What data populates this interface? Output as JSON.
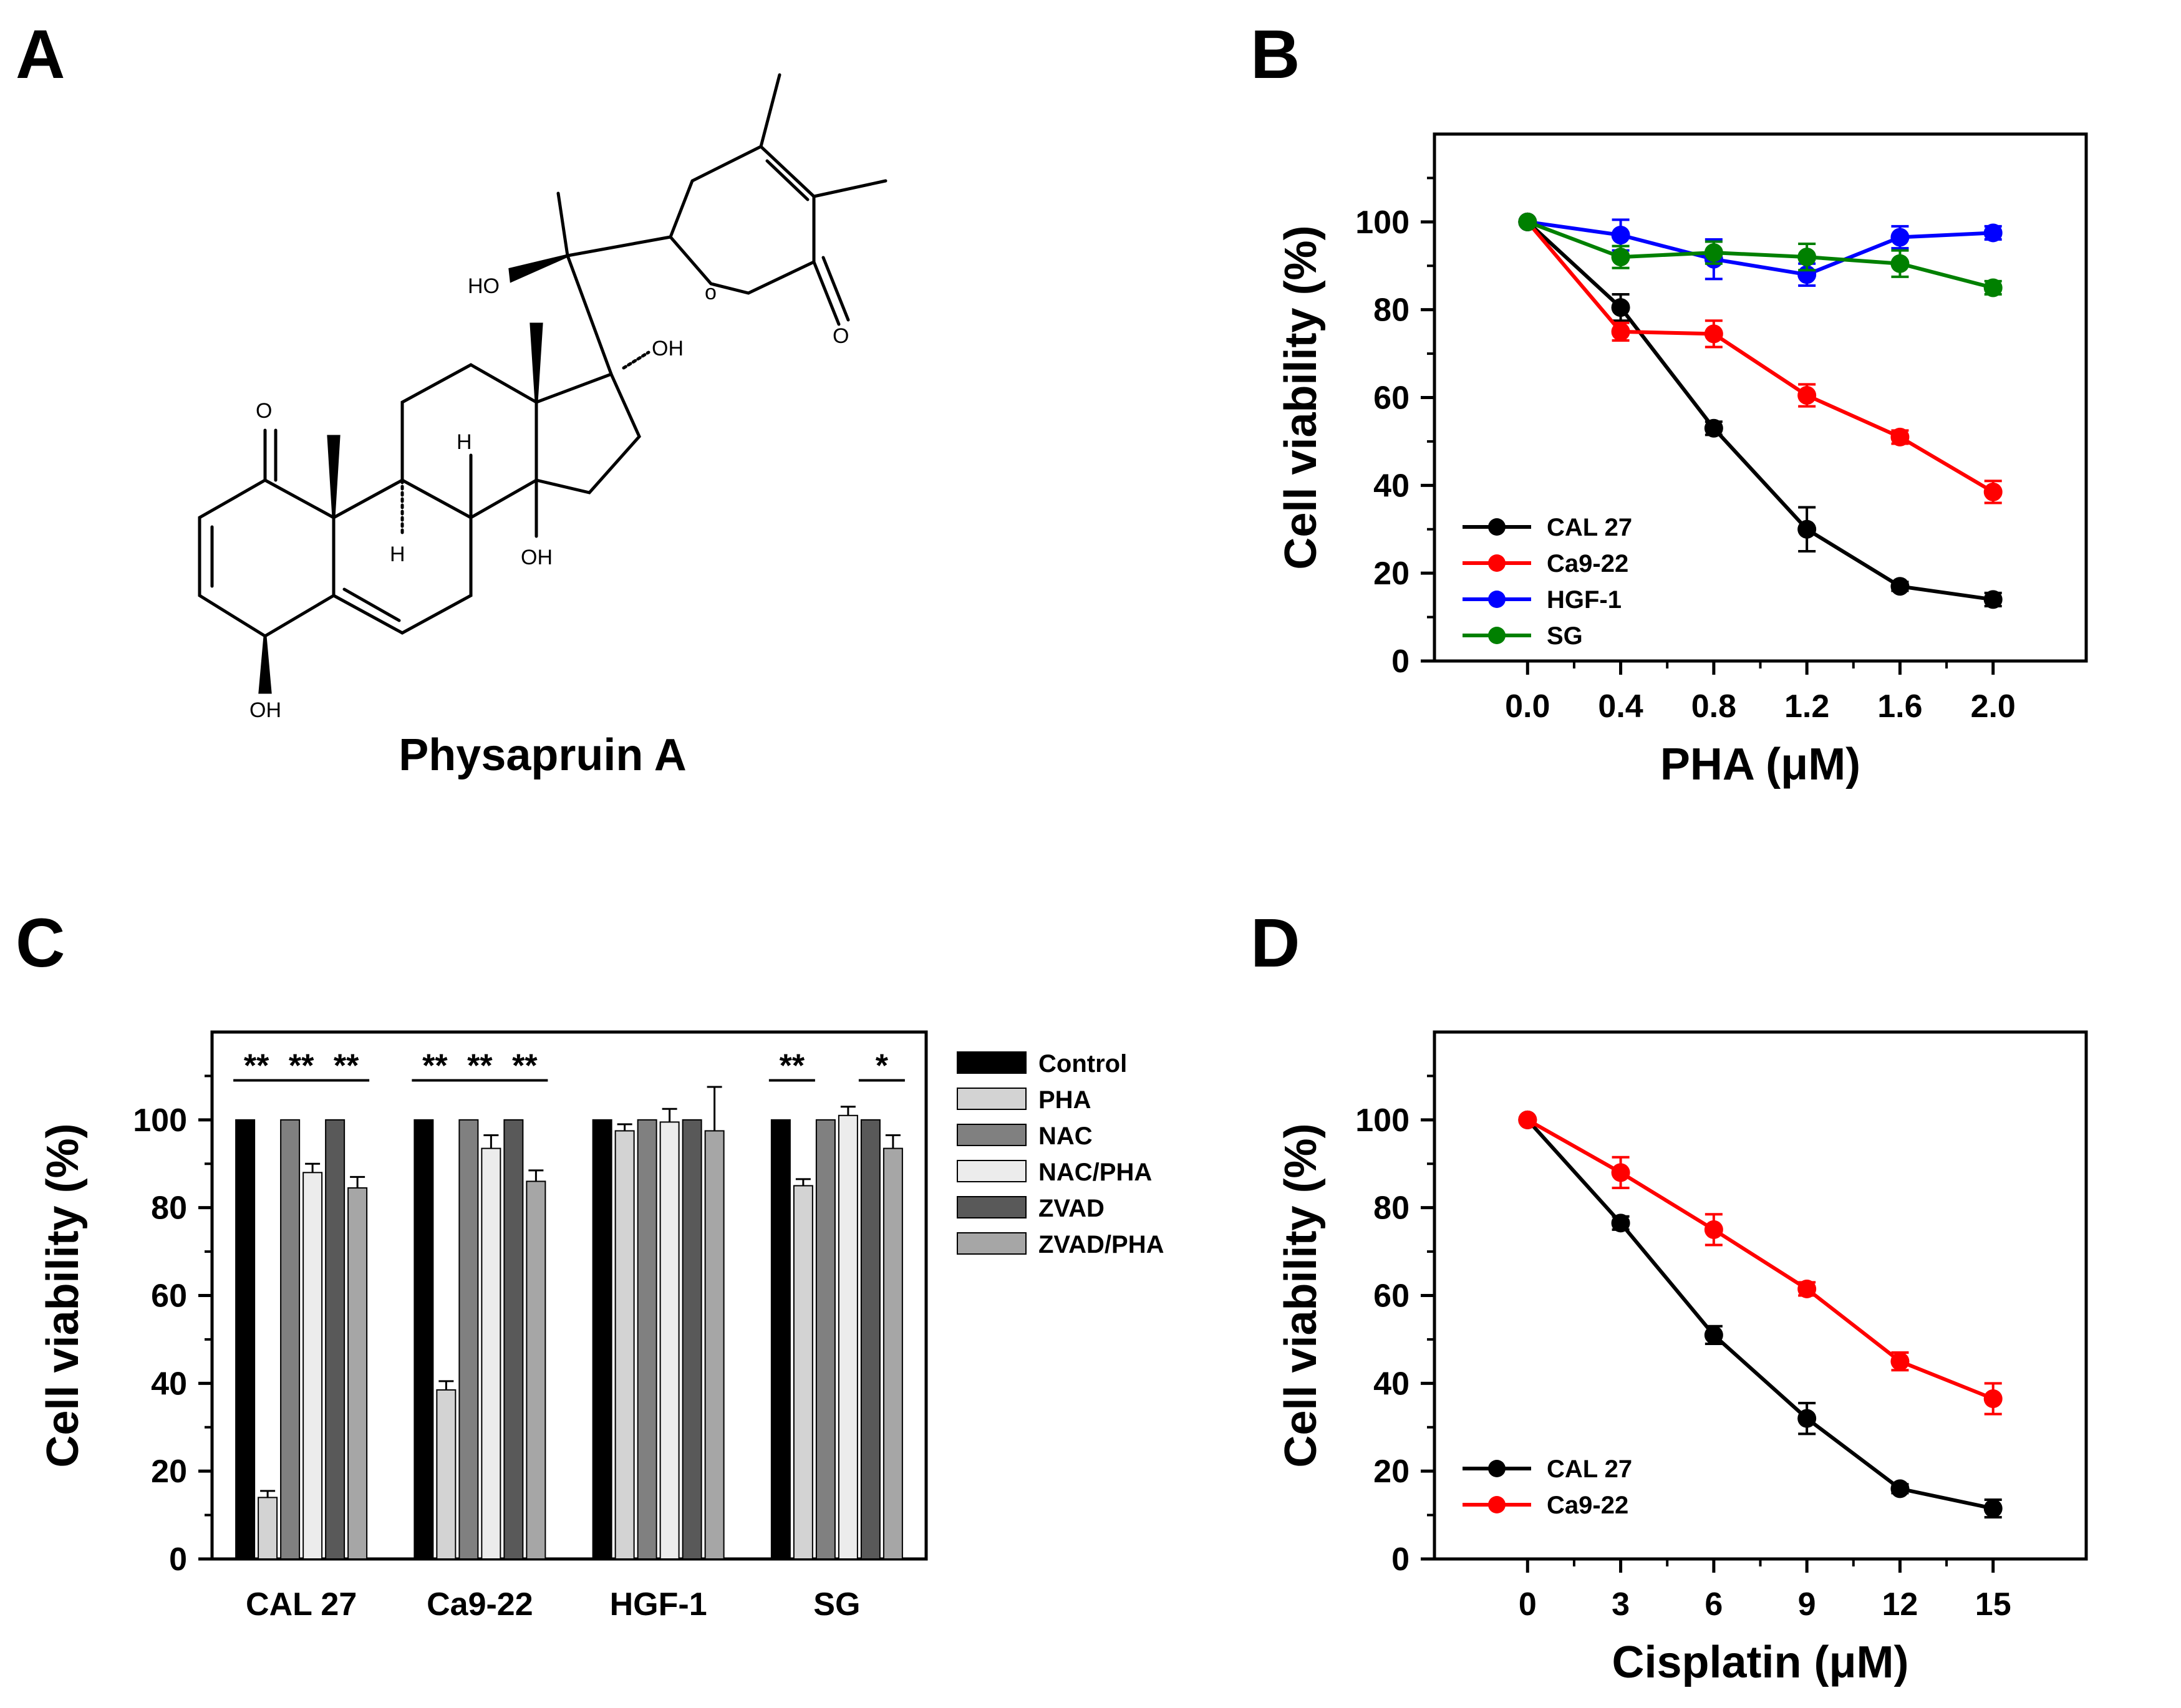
{
  "panels": {
    "A": {
      "label": "A",
      "compound_name": "Physapruin A",
      "atom_labels": {
        "oh1": "HO",
        "oh2": "OH",
        "oh3": "OH",
        "oh4": "OH",
        "o_ketone": "O",
        "o_ring": "o",
        "o_lactone": "O",
        "h1": "H",
        "h2": "H"
      }
    },
    "B": {
      "label": "B"
    },
    "C": {
      "label": "C"
    },
    "D": {
      "label": "D"
    }
  },
  "chart_data": [
    {
      "panel": "B",
      "type": "line",
      "title": "",
      "xlabel": "PHA (μM)",
      "ylabel": "Cell viability (%)",
      "xlim": [
        -0.4,
        2.4
      ],
      "ylim": [
        0,
        120
      ],
      "x_ticks": [
        "0.0",
        "0.4",
        "0.8",
        "1.2",
        "1.6",
        "2.0"
      ],
      "y_ticks": [
        "0",
        "20",
        "40",
        "60",
        "80",
        "100"
      ],
      "legend_position": "bottom-left",
      "x": [
        0.0,
        0.4,
        0.8,
        1.2,
        1.6,
        2.0
      ],
      "series": [
        {
          "name": "CAL 27",
          "color": "#000000",
          "values": [
            100,
            80.5,
            53,
            30,
            17,
            14
          ],
          "errors": [
            0,
            3,
            1.5,
            5,
            1,
            1.5
          ]
        },
        {
          "name": "Ca9-22",
          "color": "#ff0000",
          "values": [
            100,
            75,
            74.5,
            60.5,
            51,
            38.5
          ],
          "errors": [
            0,
            2,
            3,
            2.5,
            1.5,
            2.5
          ]
        },
        {
          "name": "HGF-1",
          "color": "#0000ff",
          "values": [
            100,
            97,
            91.5,
            88,
            96.5,
            97.5
          ],
          "errors": [
            0,
            3.5,
            4.5,
            2.5,
            2.5,
            1.5
          ]
        },
        {
          "name": "SG",
          "color": "#008000",
          "values": [
            100,
            92,
            93,
            92,
            90.5,
            85
          ],
          "errors": [
            0,
            2.5,
            2.5,
            3,
            3,
            1.5
          ]
        }
      ]
    },
    {
      "panel": "C",
      "type": "bar",
      "title": "",
      "xlabel": "",
      "ylabel": "Cell viability (%)",
      "ylim": [
        0,
        120
      ],
      "y_ticks": [
        "0",
        "20",
        "40",
        "60",
        "80",
        "100"
      ],
      "legend_position": "right",
      "categories": [
        "CAL 27",
        "Ca9-22",
        "HGF-1",
        "SG"
      ],
      "series": [
        {
          "name": "Control",
          "color": "#000000",
          "values": [
            100,
            100,
            100,
            100
          ],
          "errors": [
            0,
            0,
            0,
            0
          ]
        },
        {
          "name": "PHA",
          "color": "#d3d3d3",
          "values": [
            14,
            38.5,
            97.5,
            85
          ],
          "errors": [
            1.5,
            2,
            1.5,
            1.5
          ]
        },
        {
          "name": "NAC",
          "color": "#808080",
          "values": [
            100,
            100,
            100,
            100
          ],
          "errors": [
            0,
            0,
            0,
            0
          ]
        },
        {
          "name": "NAC/PHA",
          "color": "#ececec",
          "values": [
            88,
            93.5,
            99.5,
            101
          ],
          "errors": [
            2,
            3,
            3,
            2
          ]
        },
        {
          "name": "ZVAD",
          "color": "#595959",
          "values": [
            100,
            100,
            100,
            100
          ],
          "errors": [
            0,
            0,
            0,
            0
          ]
        },
        {
          "name": "ZVAD/PHA",
          "color": "#a6a6a6",
          "values": [
            84.5,
            86,
            97.5,
            93.5
          ],
          "errors": [
            2.5,
            2.5,
            10,
            3
          ]
        }
      ],
      "significance": [
        {
          "category": "CAL 27",
          "from": "Control",
          "to": "PHA",
          "label": "**"
        },
        {
          "category": "CAL 27",
          "from": "NAC",
          "to": "NAC/PHA",
          "label": "**"
        },
        {
          "category": "CAL 27",
          "from": "ZVAD",
          "to": "ZVAD/PHA",
          "label": "**"
        },
        {
          "category": "Ca9-22",
          "from": "Control",
          "to": "PHA",
          "label": "**"
        },
        {
          "category": "Ca9-22",
          "from": "NAC",
          "to": "NAC/PHA",
          "label": "**"
        },
        {
          "category": "Ca9-22",
          "from": "ZVAD",
          "to": "ZVAD/PHA",
          "label": "**"
        },
        {
          "category": "SG",
          "from": "Control",
          "to": "PHA",
          "label": "**"
        },
        {
          "category": "SG",
          "from": "ZVAD",
          "to": "ZVAD/PHA",
          "label": "*"
        }
      ]
    },
    {
      "panel": "D",
      "type": "line",
      "title": "",
      "xlabel": "Cisplatin (μM)",
      "ylabel": "Cell viability (%)",
      "xlim": [
        -3,
        18
      ],
      "ylim": [
        0,
        120
      ],
      "x_ticks": [
        "0",
        "3",
        "6",
        "9",
        "12",
        "15"
      ],
      "y_ticks": [
        "0",
        "20",
        "40",
        "60",
        "80",
        "100"
      ],
      "legend_position": "bottom-left",
      "x": [
        0,
        3,
        6,
        9,
        12,
        15
      ],
      "series": [
        {
          "name": "CAL 27",
          "color": "#000000",
          "values": [
            100,
            76.5,
            51,
            32,
            16,
            11.5
          ],
          "errors": [
            0,
            1.5,
            2,
            3.5,
            1,
            2
          ]
        },
        {
          "name": "Ca9-22",
          "color": "#ff0000",
          "values": [
            100,
            88,
            75,
            61.5,
            45,
            36.5
          ],
          "errors": [
            0,
            3.5,
            3.5,
            1.5,
            2,
            3.5
          ]
        }
      ]
    }
  ]
}
